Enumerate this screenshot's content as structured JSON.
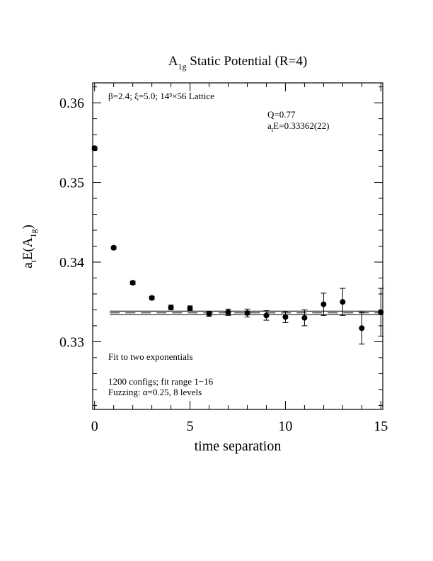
{
  "chart_data": {
    "type": "scatter",
    "title_main": "A",
    "title_sub": "1g",
    "title_rest": " Static Potential (R=4)",
    "xlabel": "time separation",
    "ylabel_main": "a",
    "ylabel_t": "t",
    "ylabel_E": "E(A",
    "ylabel_sub": "1g",
    "ylabel_close": ")",
    "xlim": [
      -0.1,
      15.1
    ],
    "ylim": [
      0.3215,
      0.3625
    ],
    "x_ticks_major": [
      0,
      5,
      10,
      15
    ],
    "x_tick_labels": [
      "0",
      "5",
      "10",
      "15"
    ],
    "y_ticks_major": [
      0.33,
      0.34,
      0.35,
      0.36
    ],
    "y_tick_labels": [
      "0.33",
      "0.34",
      "0.35",
      "0.36"
    ],
    "annotations": {
      "lattice": "β=2.4; ξ=5.0; 14³×56 Lattice",
      "q": "Q=0.77",
      "energy_prefix": "a",
      "energy_sub": "t",
      "energy_rest": "E=0.33362(22)",
      "fit": "Fit to two exponentials",
      "configs": "1200 configs; fit range 1−16",
      "fuzzing": "Fuzzing: α=0.25, 8 levels"
    },
    "fit_line": {
      "value": 0.33362,
      "error": 0.00022
    },
    "points": [
      {
        "x": 0,
        "y": 0.3543,
        "err": 0.0002
      },
      {
        "x": 1,
        "y": 0.3418,
        "err": 0.0002
      },
      {
        "x": 2,
        "y": 0.3374,
        "err": 0.0002
      },
      {
        "x": 3,
        "y": 0.3355,
        "err": 0.0002
      },
      {
        "x": 4,
        "y": 0.3343,
        "err": 0.0003
      },
      {
        "x": 5,
        "y": 0.3342,
        "err": 0.0003
      },
      {
        "x": 6,
        "y": 0.3335,
        "err": 0.0003
      },
      {
        "x": 7,
        "y": 0.3337,
        "err": 0.0004
      },
      {
        "x": 8,
        "y": 0.3336,
        "err": 0.0005
      },
      {
        "x": 9,
        "y": 0.3333,
        "err": 0.0006
      },
      {
        "x": 10,
        "y": 0.3331,
        "err": 0.0007
      },
      {
        "x": 11,
        "y": 0.333,
        "err": 0.001
      },
      {
        "x": 12,
        "y": 0.3347,
        "err": 0.0014
      },
      {
        "x": 13,
        "y": 0.335,
        "err": 0.0017
      },
      {
        "x": 14,
        "y": 0.3317,
        "err": 0.002
      },
      {
        "x": 15,
        "y": 0.3337,
        "err": 0.003
      }
    ]
  }
}
